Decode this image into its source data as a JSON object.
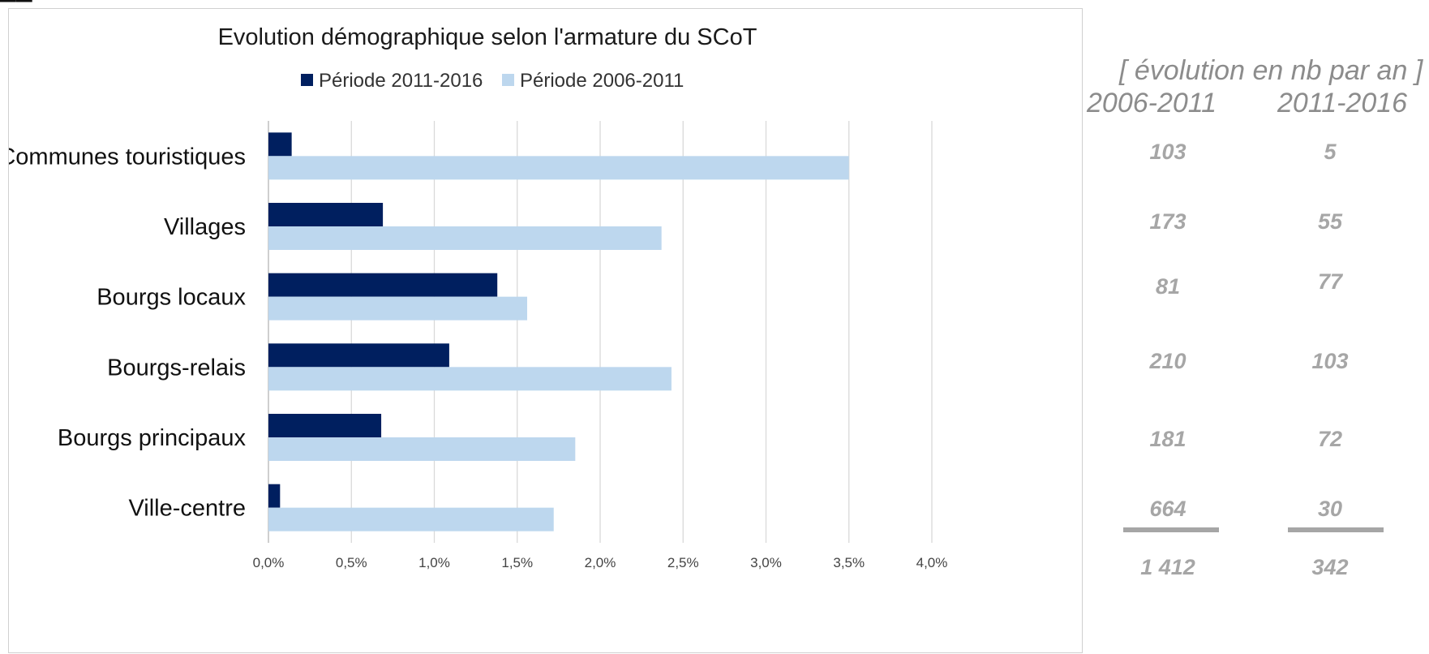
{
  "chart_data": {
    "type": "bar",
    "orientation": "horizontal",
    "title": "Evolution démographique selon l'armature du SCoT",
    "categories": [
      "Communes touristiques",
      "Villages",
      "Bourgs locaux",
      "Bourgs-relais",
      "Bourgs principaux",
      "Ville-centre"
    ],
    "series": [
      {
        "name": "Période 2011-2016",
        "color": "#001f5f",
        "values": [
          0.14,
          0.69,
          1.38,
          1.09,
          0.68,
          0.07
        ]
      },
      {
        "name": "Période 2006-2011",
        "color": "#bdd7ee",
        "values": [
          3.5,
          2.37,
          1.56,
          2.43,
          1.85,
          1.72
        ]
      }
    ],
    "xlim": [
      0,
      4.0
    ],
    "xticks": [
      "0,0%",
      "0,5%",
      "1,0%",
      "1,5%",
      "2,0%",
      "2,5%",
      "3,0%",
      "3,5%",
      "4,0%"
    ],
    "xtick_values": [
      0,
      0.5,
      1.0,
      1.5,
      2.0,
      2.5,
      3.0,
      3.5,
      4.0
    ],
    "grid": true,
    "legend_position": "top"
  },
  "side_table": {
    "heading": "[ évolution en nb par an ]",
    "col_2006": "2006-2011",
    "col_2011": "2011-2016",
    "rows": [
      {
        "v2006": "103",
        "v2011": "5"
      },
      {
        "v2006": "173",
        "v2011": "55"
      },
      {
        "v2006": "81",
        "v2011": "77"
      },
      {
        "v2006": "210",
        "v2011": "103"
      },
      {
        "v2006": "181",
        "v2011": "72"
      },
      {
        "v2006": "664",
        "v2011": "30"
      }
    ],
    "total_2006": "1 412",
    "total_2011": "342"
  }
}
